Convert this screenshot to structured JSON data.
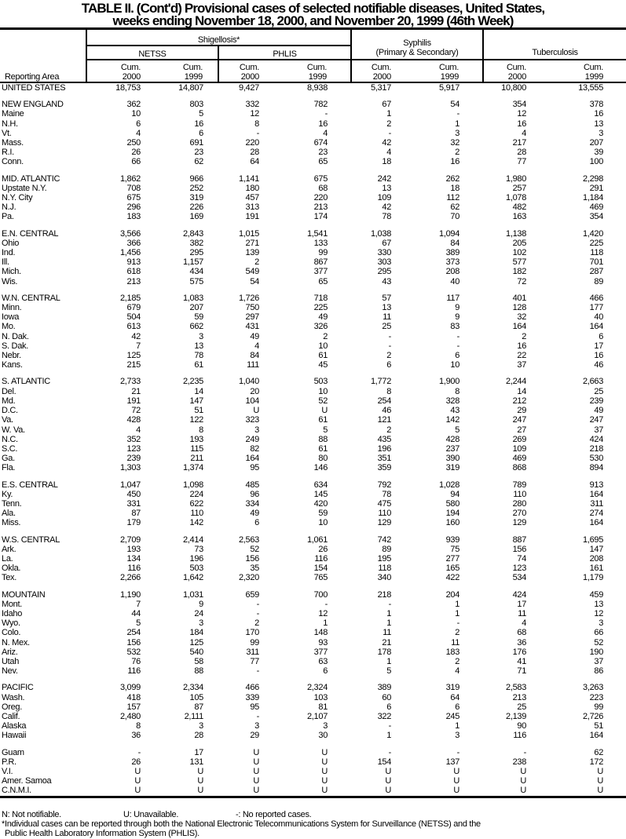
{
  "title": {
    "line1": "TABLE II. (Cont'd) Provisional cases of selected notifiable diseases, United States,",
    "line2": "weeks ending November 18, 2000, and November 20, 1999 (46th Week)"
  },
  "header": {
    "reporting_area": "Reporting Area",
    "shigellosis": "Shigellosis*",
    "netss": "NETSS",
    "phlis": "PHLIS",
    "syphilis_line1": "Syphilis",
    "syphilis_line2": "(Primary & Secondary)",
    "tuberculosis": "Tuberculosis",
    "cols": [
      {
        "l1": "Cum.",
        "l2": "2000"
      },
      {
        "l1": "Cum.",
        "l2": "1999"
      },
      {
        "l1": "Cum.",
        "l2": "2000"
      },
      {
        "l1": "Cum.",
        "l2": "1999"
      },
      {
        "l1": "Cum.",
        "l2": "2000"
      },
      {
        "l1": "Cum.",
        "l2": "1999"
      },
      {
        "l1": "Cum.",
        "l2": "2000"
      },
      {
        "l1": "Cum.",
        "l2": "1999"
      }
    ]
  },
  "groups": [
    [
      {
        "area": "UNITED STATES",
        "values": [
          "18,753",
          "14,807",
          "9,427",
          "8,938",
          "5,317",
          "5,917",
          "10,800",
          "13,555"
        ]
      }
    ],
    [
      {
        "area": "NEW ENGLAND",
        "values": [
          "362",
          "803",
          "332",
          "782",
          "67",
          "54",
          "354",
          "378"
        ]
      },
      {
        "area": "Maine",
        "values": [
          "10",
          "5",
          "12",
          "-",
          "1",
          "-",
          "12",
          "16"
        ]
      },
      {
        "area": "N.H.",
        "values": [
          "6",
          "16",
          "8",
          "16",
          "2",
          "1",
          "16",
          "13"
        ]
      },
      {
        "area": "Vt.",
        "values": [
          "4",
          "6",
          "-",
          "4",
          "-",
          "3",
          "4",
          "3"
        ]
      },
      {
        "area": "Mass.",
        "values": [
          "250",
          "691",
          "220",
          "674",
          "42",
          "32",
          "217",
          "207"
        ]
      },
      {
        "area": "R.I.",
        "values": [
          "26",
          "23",
          "28",
          "23",
          "4",
          "2",
          "28",
          "39"
        ]
      },
      {
        "area": "Conn.",
        "values": [
          "66",
          "62",
          "64",
          "65",
          "18",
          "16",
          "77",
          "100"
        ]
      }
    ],
    [
      {
        "area": "MID. ATLANTIC",
        "values": [
          "1,862",
          "966",
          "1,141",
          "675",
          "242",
          "262",
          "1,980",
          "2,298"
        ]
      },
      {
        "area": "Upstate N.Y.",
        "values": [
          "708",
          "252",
          "180",
          "68",
          "13",
          "18",
          "257",
          "291"
        ]
      },
      {
        "area": "N.Y. City",
        "values": [
          "675",
          "319",
          "457",
          "220",
          "109",
          "112",
          "1,078",
          "1,184"
        ]
      },
      {
        "area": "N.J.",
        "values": [
          "296",
          "226",
          "313",
          "213",
          "42",
          "62",
          "482",
          "469"
        ]
      },
      {
        "area": "Pa.",
        "values": [
          "183",
          "169",
          "191",
          "174",
          "78",
          "70",
          "163",
          "354"
        ]
      }
    ],
    [
      {
        "area": "E.N. CENTRAL",
        "values": [
          "3,566",
          "2,843",
          "1,015",
          "1,541",
          "1,038",
          "1,094",
          "1,138",
          "1,420"
        ]
      },
      {
        "area": "Ohio",
        "values": [
          "366",
          "382",
          "271",
          "133",
          "67",
          "84",
          "205",
          "225"
        ]
      },
      {
        "area": "Ind.",
        "values": [
          "1,456",
          "295",
          "139",
          "99",
          "330",
          "389",
          "102",
          "118"
        ]
      },
      {
        "area": "Ill.",
        "values": [
          "913",
          "1,157",
          "2",
          "867",
          "303",
          "373",
          "577",
          "701"
        ]
      },
      {
        "area": "Mich.",
        "values": [
          "618",
          "434",
          "549",
          "377",
          "295",
          "208",
          "182",
          "287"
        ]
      },
      {
        "area": "Wis.",
        "values": [
          "213",
          "575",
          "54",
          "65",
          "43",
          "40",
          "72",
          "89"
        ]
      }
    ],
    [
      {
        "area": "W.N. CENTRAL",
        "values": [
          "2,185",
          "1,083",
          "1,726",
          "718",
          "57",
          "117",
          "401",
          "466"
        ]
      },
      {
        "area": "Minn.",
        "values": [
          "679",
          "207",
          "750",
          "225",
          "13",
          "9",
          "128",
          "177"
        ]
      },
      {
        "area": "Iowa",
        "values": [
          "504",
          "59",
          "297",
          "49",
          "11",
          "9",
          "32",
          "40"
        ]
      },
      {
        "area": "Mo.",
        "values": [
          "613",
          "662",
          "431",
          "326",
          "25",
          "83",
          "164",
          "164"
        ]
      },
      {
        "area": "N. Dak.",
        "values": [
          "42",
          "3",
          "49",
          "2",
          "-",
          "-",
          "2",
          "6"
        ]
      },
      {
        "area": "S. Dak.",
        "values": [
          "7",
          "13",
          "4",
          "10",
          "-",
          "-",
          "16",
          "17"
        ]
      },
      {
        "area": "Nebr.",
        "values": [
          "125",
          "78",
          "84",
          "61",
          "2",
          "6",
          "22",
          "16"
        ]
      },
      {
        "area": "Kans.",
        "values": [
          "215",
          "61",
          "111",
          "45",
          "6",
          "10",
          "37",
          "46"
        ]
      }
    ],
    [
      {
        "area": "S. ATLANTIC",
        "values": [
          "2,733",
          "2,235",
          "1,040",
          "503",
          "1,772",
          "1,900",
          "2,244",
          "2,663"
        ]
      },
      {
        "area": "Del.",
        "values": [
          "21",
          "14",
          "20",
          "10",
          "8",
          "8",
          "14",
          "25"
        ]
      },
      {
        "area": "Md.",
        "values": [
          "191",
          "147",
          "104",
          "52",
          "254",
          "328",
          "212",
          "239"
        ]
      },
      {
        "area": "D.C.",
        "values": [
          "72",
          "51",
          "U",
          "U",
          "46",
          "43",
          "29",
          "49"
        ]
      },
      {
        "area": "Va.",
        "values": [
          "428",
          "122",
          "323",
          "61",
          "121",
          "142",
          "247",
          "247"
        ]
      },
      {
        "area": "W. Va.",
        "values": [
          "4",
          "8",
          "3",
          "5",
          "2",
          "5",
          "27",
          "37"
        ]
      },
      {
        "area": "N.C.",
        "values": [
          "352",
          "193",
          "249",
          "88",
          "435",
          "428",
          "269",
          "424"
        ]
      },
      {
        "area": "S.C.",
        "values": [
          "123",
          "115",
          "82",
          "61",
          "196",
          "237",
          "109",
          "218"
        ]
      },
      {
        "area": "Ga.",
        "values": [
          "239",
          "211",
          "164",
          "80",
          "351",
          "390",
          "469",
          "530"
        ]
      },
      {
        "area": "Fla.",
        "values": [
          "1,303",
          "1,374",
          "95",
          "146",
          "359",
          "319",
          "868",
          "894"
        ]
      }
    ],
    [
      {
        "area": "E.S. CENTRAL",
        "values": [
          "1,047",
          "1,098",
          "485",
          "634",
          "792",
          "1,028",
          "789",
          "913"
        ]
      },
      {
        "area": "Ky.",
        "values": [
          "450",
          "224",
          "96",
          "145",
          "78",
          "94",
          "110",
          "164"
        ]
      },
      {
        "area": "Tenn.",
        "values": [
          "331",
          "622",
          "334",
          "420",
          "475",
          "580",
          "280",
          "311"
        ]
      },
      {
        "area": "Ala.",
        "values": [
          "87",
          "110",
          "49",
          "59",
          "110",
          "194",
          "270",
          "274"
        ]
      },
      {
        "area": "Miss.",
        "values": [
          "179",
          "142",
          "6",
          "10",
          "129",
          "160",
          "129",
          "164"
        ]
      }
    ],
    [
      {
        "area": "W.S. CENTRAL",
        "values": [
          "2,709",
          "2,414",
          "2,563",
          "1,061",
          "742",
          "939",
          "887",
          "1,695"
        ]
      },
      {
        "area": "Ark.",
        "values": [
          "193",
          "73",
          "52",
          "26",
          "89",
          "75",
          "156",
          "147"
        ]
      },
      {
        "area": "La.",
        "values": [
          "134",
          "196",
          "156",
          "116",
          "195",
          "277",
          "74",
          "208"
        ]
      },
      {
        "area": "Okla.",
        "values": [
          "116",
          "503",
          "35",
          "154",
          "118",
          "165",
          "123",
          "161"
        ]
      },
      {
        "area": "Tex.",
        "values": [
          "2,266",
          "1,642",
          "2,320",
          "765",
          "340",
          "422",
          "534",
          "1,179"
        ]
      }
    ],
    [
      {
        "area": "MOUNTAIN",
        "values": [
          "1,190",
          "1,031",
          "659",
          "700",
          "218",
          "204",
          "424",
          "459"
        ]
      },
      {
        "area": "Mont.",
        "values": [
          "7",
          "9",
          "-",
          "-",
          "-",
          "1",
          "17",
          "13"
        ]
      },
      {
        "area": "Idaho",
        "values": [
          "44",
          "24",
          "-",
          "12",
          "1",
          "1",
          "11",
          "12"
        ]
      },
      {
        "area": "Wyo.",
        "values": [
          "5",
          "3",
          "2",
          "1",
          "1",
          "-",
          "4",
          "3"
        ]
      },
      {
        "area": "Colo.",
        "values": [
          "254",
          "184",
          "170",
          "148",
          "11",
          "2",
          "68",
          "66"
        ]
      },
      {
        "area": "N. Mex.",
        "values": [
          "156",
          "125",
          "99",
          "93",
          "21",
          "11",
          "36",
          "52"
        ]
      },
      {
        "area": "Ariz.",
        "values": [
          "532",
          "540",
          "311",
          "377",
          "178",
          "183",
          "176",
          "190"
        ]
      },
      {
        "area": "Utah",
        "values": [
          "76",
          "58",
          "77",
          "63",
          "1",
          "2",
          "41",
          "37"
        ]
      },
      {
        "area": "Nev.",
        "values": [
          "116",
          "88",
          "-",
          "6",
          "5",
          "4",
          "71",
          "86"
        ]
      }
    ],
    [
      {
        "area": "PACIFIC",
        "values": [
          "3,099",
          "2,334",
          "466",
          "2,324",
          "389",
          "319",
          "2,583",
          "3,263"
        ]
      },
      {
        "area": "Wash.",
        "values": [
          "418",
          "105",
          "339",
          "103",
          "60",
          "64",
          "213",
          "223"
        ]
      },
      {
        "area": "Oreg.",
        "values": [
          "157",
          "87",
          "95",
          "81",
          "6",
          "6",
          "25",
          "99"
        ]
      },
      {
        "area": "Calif.",
        "values": [
          "2,480",
          "2,111",
          "-",
          "2,107",
          "322",
          "245",
          "2,139",
          "2,726"
        ]
      },
      {
        "area": "Alaska",
        "values": [
          "8",
          "3",
          "3",
          "3",
          "-",
          "1",
          "90",
          "51"
        ]
      },
      {
        "area": "Hawaii",
        "values": [
          "36",
          "28",
          "29",
          "30",
          "1",
          "3",
          "116",
          "164"
        ]
      }
    ],
    [
      {
        "area": "Guam",
        "values": [
          "-",
          "17",
          "U",
          "U",
          "-",
          "-",
          "-",
          "62"
        ]
      },
      {
        "area": "P.R.",
        "values": [
          "26",
          "131",
          "U",
          "U",
          "154",
          "137",
          "238",
          "172"
        ]
      },
      {
        "area": "V.I.",
        "values": [
          "U",
          "U",
          "U",
          "U",
          "U",
          "U",
          "U",
          "U"
        ]
      },
      {
        "area": "Amer. Samoa",
        "values": [
          "U",
          "U",
          "U",
          "U",
          "U",
          "U",
          "U",
          "U"
        ]
      },
      {
        "area": "C.N.M.I.",
        "values": [
          "U",
          "U",
          "U",
          "U",
          "U",
          "U",
          "U",
          "U"
        ]
      }
    ]
  ],
  "footnotes": {
    "n": "N: Not notifiable.",
    "u": "U: Unavailable.",
    "dash": "-: No reported cases.",
    "star_line1": "*Individual cases can be reported through both the National Electronic Telecommunications System for Surveillance (NETSS) and the",
    "star_line2": "Public Health Laboratory Information System (PHLIS)."
  }
}
